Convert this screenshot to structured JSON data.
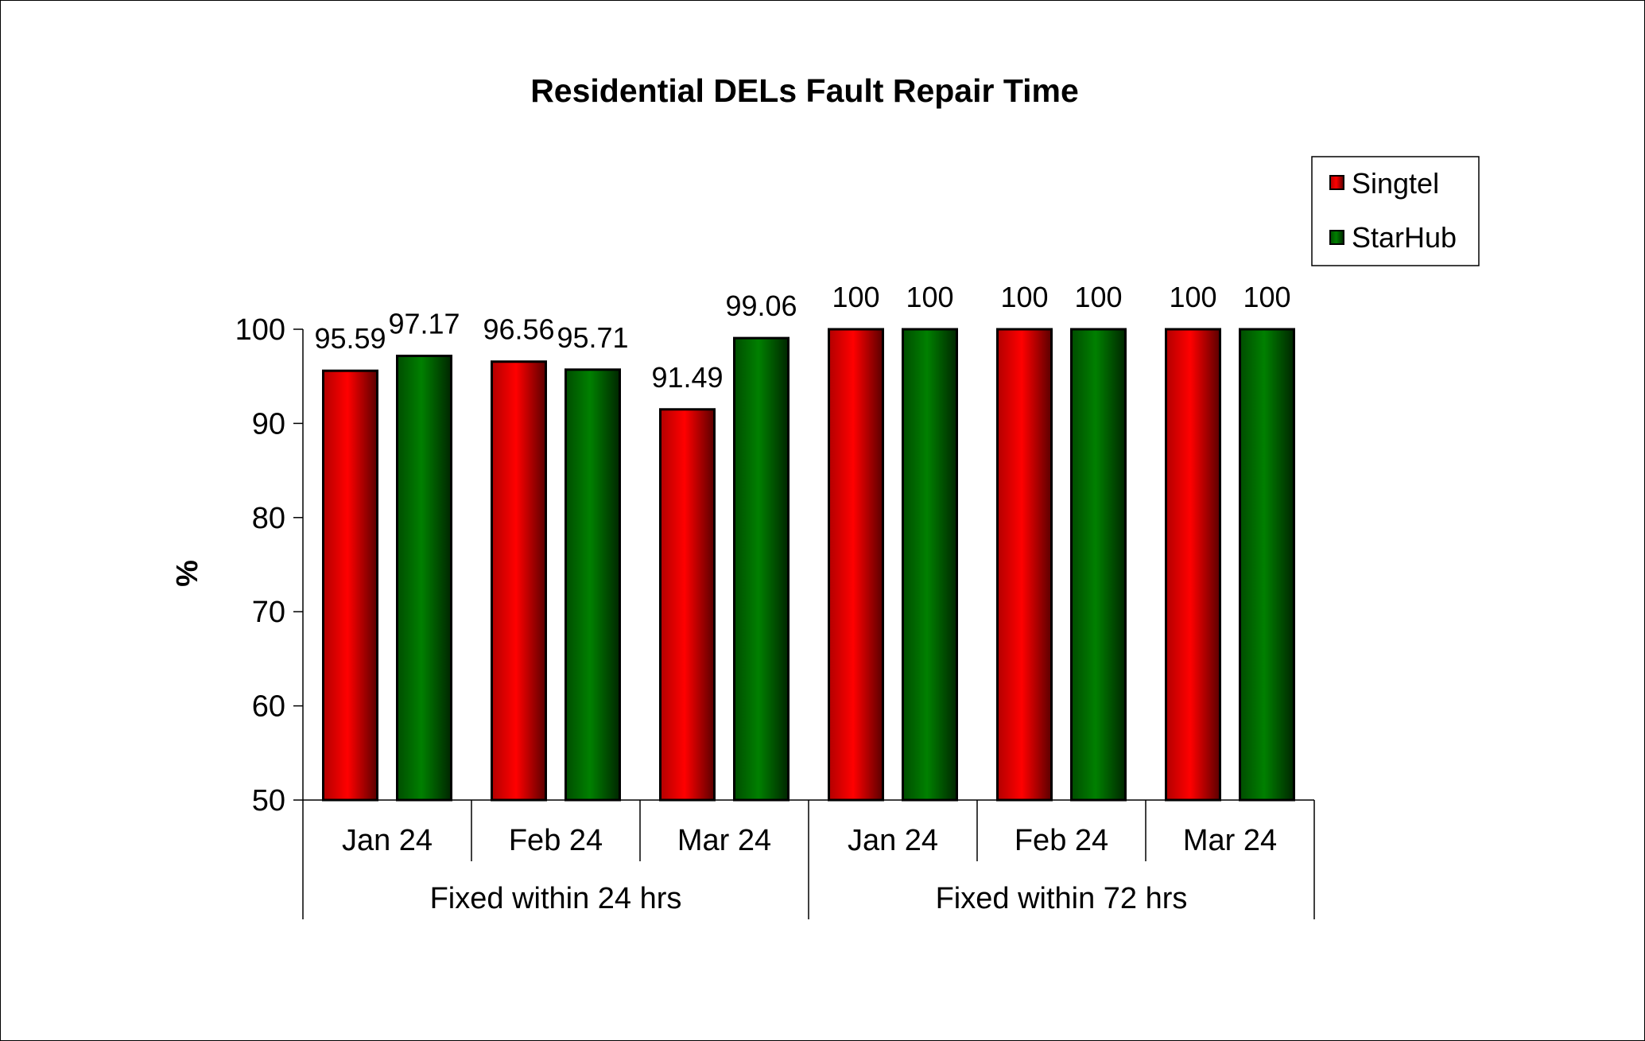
{
  "chart_data": {
    "type": "bar",
    "title": "Residential DELs Fault Repair Time",
    "ylabel": "%",
    "xlabel": "",
    "ylim": [
      50,
      100
    ],
    "yticks": [
      50,
      60,
      70,
      80,
      90,
      100
    ],
    "categories": [
      "Jan 24",
      "Feb 24",
      "Mar 24",
      "Jan 24",
      "Feb 24",
      "Mar 24"
    ],
    "groups": [
      {
        "label": "Fixed within 24 hrs",
        "span": 3
      },
      {
        "label": "Fixed within 72 hrs",
        "span": 3
      }
    ],
    "series": [
      {
        "name": "Singtel",
        "color": "#ff0000",
        "values": [
          95.59,
          96.56,
          91.49,
          100,
          100,
          100
        ]
      },
      {
        "name": "StarHub",
        "color": "#006600",
        "values": [
          97.17,
          95.71,
          99.06,
          100,
          100,
          100
        ]
      }
    ],
    "data_labels": [
      [
        "95.59",
        "96.56",
        "91.49",
        "100",
        "100",
        "100"
      ],
      [
        "97.17",
        "95.71",
        "99.06",
        "100",
        "100",
        "100"
      ]
    ],
    "legend": "top-right",
    "grid": false
  }
}
